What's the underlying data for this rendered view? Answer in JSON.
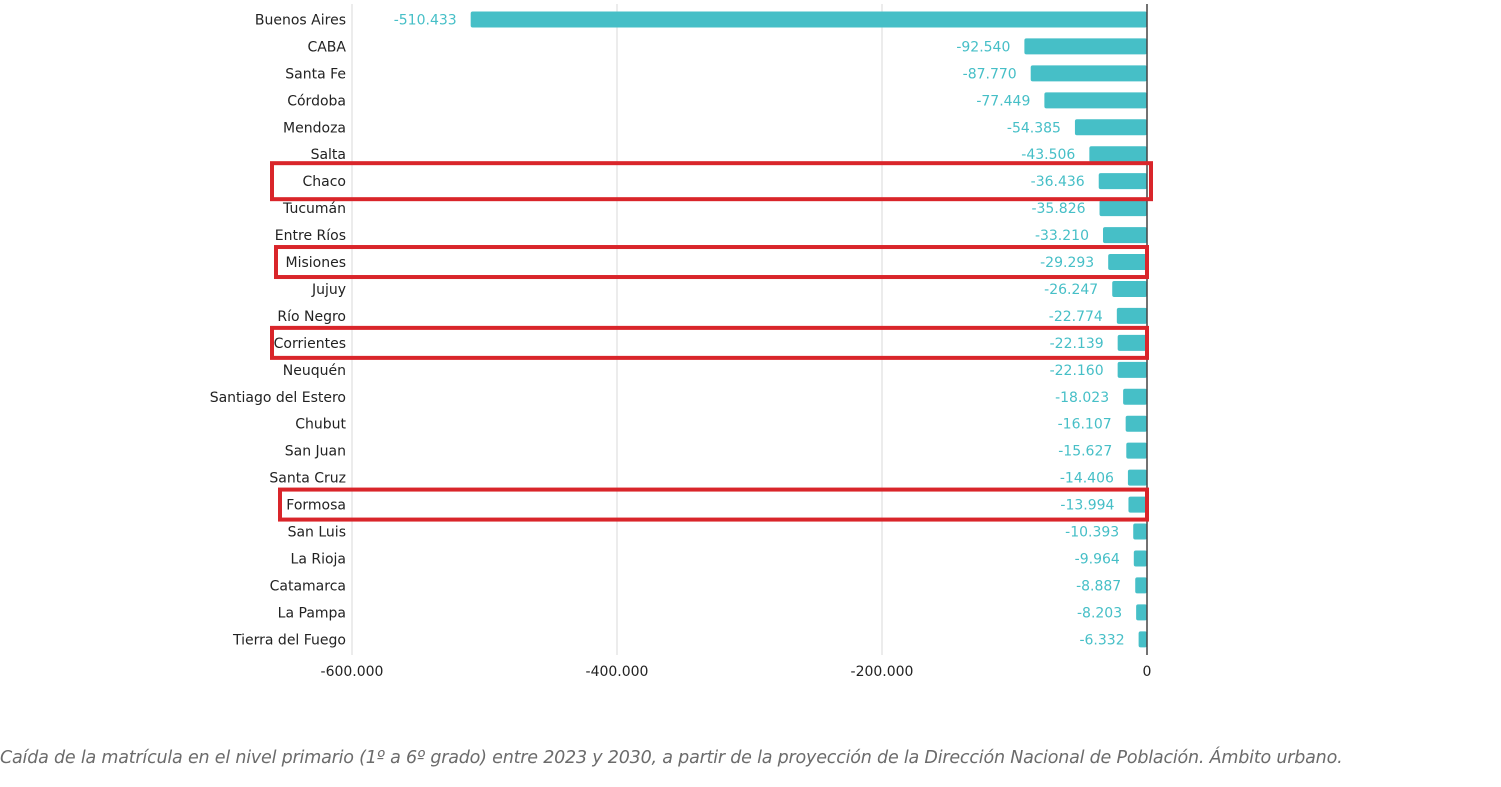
{
  "chart_data": {
    "type": "bar",
    "orientation": "horizontal",
    "title": "",
    "xlabel": "",
    "ylabel": "",
    "xlim": [
      -600000,
      0
    ],
    "grid": true,
    "bar_color": "#46bfc7",
    "highlight_color": "#d9252a",
    "categories": [
      "Buenos Aires",
      "CABA",
      "Santa Fe",
      "Córdoba",
      "Mendoza",
      "Salta",
      "Chaco",
      "Tucumán",
      "Entre Ríos",
      "Misiones",
      "Jujuy",
      "Río Negro",
      "Corrientes",
      "Neuquén",
      "Santiago del Estero",
      "Chubut",
      "San Juan",
      "Santa Cruz",
      "Formosa",
      "San Luis",
      "La Rioja",
      "Catamarca",
      "La Pampa",
      "Tierra del Fuego"
    ],
    "values": [
      -510433,
      -92540,
      -87770,
      -77449,
      -54385,
      -43506,
      -36436,
      -35826,
      -33210,
      -29293,
      -26247,
      -22774,
      -22139,
      -22160,
      -18023,
      -16107,
      -15627,
      -14406,
      -13994,
      -10393,
      -9964,
      -8887,
      -8203,
      -6332
    ],
    "value_labels": [
      "-510.433",
      "-92.540",
      "-87.770",
      "-77.449",
      "-54.385",
      "-43.506",
      "-36.436",
      "-35.826",
      "-33.210",
      "-29.293",
      "-26.247",
      "-22.774",
      "-22.139",
      "-22.160",
      "-18.023",
      "-16.107",
      "-15.627",
      "-14.406",
      "-13.994",
      "-10.393",
      "-9.964",
      "-8.887",
      "-8.203",
      "-6.332"
    ],
    "ticks": [
      {
        "value": -600000,
        "label": "-600.000"
      },
      {
        "value": -400000,
        "label": "-400.000"
      },
      {
        "value": -200000,
        "label": "-200.000"
      },
      {
        "value": 0,
        "label": "0"
      }
    ],
    "highlighted": [
      "Chaco",
      "Misiones",
      "Corrientes",
      "Formosa"
    ]
  },
  "caption": "Caída de la matrícula en el nivel primario (1º a 6º grado) entre 2023 y 2030, a partir de la proyección de la Dirección Nacional de Población. Ámbito urbano."
}
